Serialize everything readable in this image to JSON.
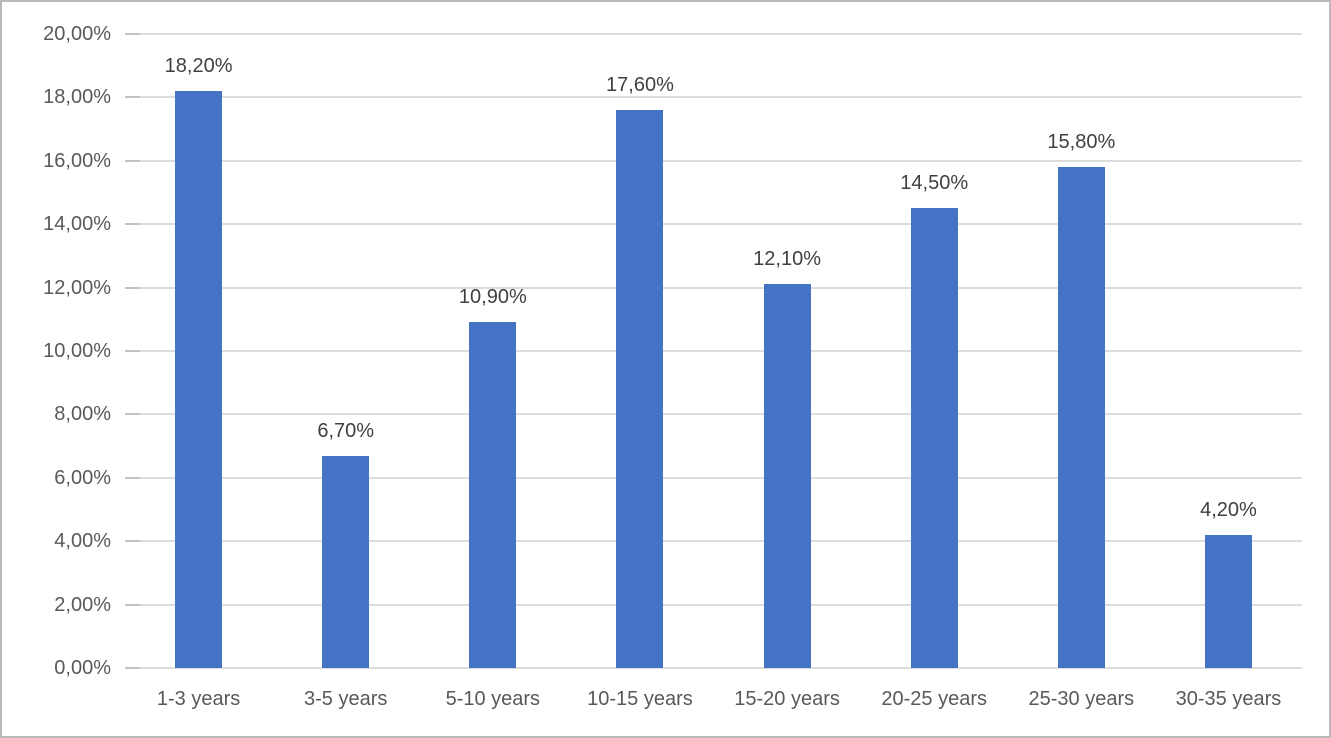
{
  "chart_data": {
    "type": "bar",
    "title": "",
    "xlabel": "",
    "ylabel": "",
    "categories": [
      "1-3 years",
      "3-5 years",
      "5-10 years",
      "10-15 years",
      "15-20 years",
      "20-25 years",
      "25-30 years",
      "30-35 years"
    ],
    "values": [
      18.2,
      6.7,
      10.9,
      17.6,
      12.1,
      14.5,
      15.8,
      4.2
    ],
    "data_labels": [
      "18,20%",
      "6,70%",
      "10,90%",
      "17,60%",
      "12,10%",
      "14,50%",
      "15,80%",
      "4,20%"
    ],
    "y_ticks": [
      "20,00%",
      "18,00%",
      "16,00%",
      "14,00%",
      "12,00%",
      "10,00%",
      "8,00%",
      "6,00%",
      "4,00%",
      "2,00%",
      "0,00%"
    ],
    "ylim": [
      0,
      20
    ],
    "grid": true,
    "legend": false,
    "colors": {
      "bar": "#4472C4",
      "gridline": "#dcdcdc",
      "tick": "#c2c2c2",
      "axis_text": "#595959",
      "data_label_text": "#404040",
      "border": "#b9b9b9",
      "background": "#ffffff"
    }
  }
}
